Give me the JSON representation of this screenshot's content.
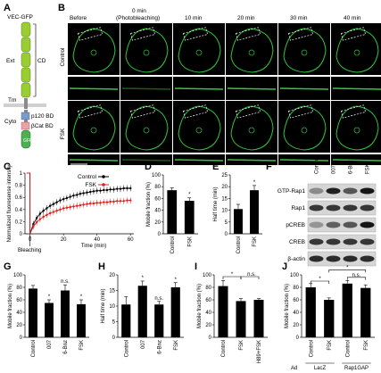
{
  "panels": {
    "A": {
      "letter": "A",
      "title": "VEC-GFP",
      "domains": {
        "ext": "Ext",
        "cd": "CD",
        "tm": "Tm",
        "cyto": "Cyto",
        "p120": "p120 BD",
        "bcat": "βCat BD",
        "gfp": "GFP"
      },
      "colors": {
        "ecto": "#9acd32",
        "p120": "#7a9cc9",
        "bcat": "#e8a3a8",
        "gfp": "#4caf50"
      }
    },
    "B": {
      "letter": "B",
      "top_times": [
        "Before",
        "10 min",
        "20 min",
        "30 min",
        "40 min"
      ],
      "bleach_time": "0 min",
      "bleach_note": "(Photobleaching)",
      "rows": [
        "Control",
        "FSK"
      ]
    },
    "C": {
      "letter": "C",
      "ylabel": "Normalized fluoresense intensity",
      "xlabel": "Time (min)",
      "xmark": "Bleaching",
      "legend": [
        "Control",
        "FSK"
      ],
      "colors": {
        "control": "#000000",
        "fsk": "#e0201b"
      },
      "chart_data": {
        "type": "line",
        "x": [
          0,
          2,
          4,
          6,
          8,
          10,
          12,
          14,
          16,
          18,
          20,
          22,
          24,
          26,
          28,
          30,
          32,
          34,
          36,
          38,
          40,
          42,
          44,
          46,
          48,
          50,
          52,
          54,
          56,
          58,
          60
        ],
        "series": [
          {
            "name": "Control",
            "values": [
              0.0,
              0.16,
              0.26,
              0.33,
              0.38,
              0.42,
              0.46,
              0.49,
              0.52,
              0.55,
              0.57,
              0.59,
              0.61,
              0.63,
              0.64,
              0.66,
              0.67,
              0.68,
              0.69,
              0.7,
              0.71,
              0.71,
              0.72,
              0.72,
              0.73,
              0.73,
              0.74,
              0.74,
              0.75,
              0.75,
              0.75
            ]
          },
          {
            "name": "FSK",
            "values": [
              0.0,
              0.12,
              0.19,
              0.24,
              0.28,
              0.31,
              0.34,
              0.36,
              0.38,
              0.4,
              0.42,
              0.43,
              0.44,
              0.45,
              0.46,
              0.47,
              0.48,
              0.49,
              0.5,
              0.5,
              0.51,
              0.51,
              0.52,
              0.52,
              0.53,
              0.53,
              0.54,
              0.54,
              0.54,
              0.55,
              0.55
            ]
          }
        ],
        "pre_bleach": 1.0,
        "xlim": [
          -3,
          62
        ],
        "ylim": [
          0,
          1
        ],
        "xticks": [
          "0",
          "20",
          "40",
          "60"
        ],
        "yticks": [
          "0",
          "0.2",
          "0.4",
          "0.6",
          "0.8",
          "1"
        ]
      }
    },
    "D": {
      "letter": "D",
      "ylabel": "Mobile fraction (%)",
      "chart_data": {
        "type": "bar",
        "categories": [
          "Control",
          "FSK"
        ],
        "values": [
          74,
          56
        ],
        "errors": [
          4,
          5
        ],
        "stars": [
          "",
          "*"
        ],
        "ylim": [
          0,
          100
        ],
        "yticks": [
          "0",
          "20",
          "40",
          "60",
          "80",
          "100"
        ]
      }
    },
    "E": {
      "letter": "E",
      "ylabel": "Half time (min)",
      "chart_data": {
        "type": "bar",
        "categories": [
          "Control",
          "FSK"
        ],
        "values": [
          10.5,
          18.5
        ],
        "errors": [
          2,
          2
        ],
        "stars": [
          "",
          "*"
        ],
        "ylim": [
          0,
          25
        ],
        "yticks": [
          "0",
          "5",
          "10",
          "15",
          "20",
          "25"
        ]
      }
    },
    "F": {
      "letter": "F",
      "lanes": [
        "Control",
        "007",
        "6-Bnz",
        "FSK"
      ],
      "rows": [
        "GTP-Rap1",
        "Rap1",
        "pCREB",
        "CREB",
        "β-actin"
      ]
    },
    "G": {
      "letter": "G",
      "ylabel": "Mobile fraction (%)",
      "chart_data": {
        "type": "bar",
        "categories": [
          "Control",
          "007",
          "6-Bnz",
          "FSK"
        ],
        "values": [
          78,
          55,
          75,
          53
        ],
        "errors": [
          5,
          5,
          9,
          7
        ],
        "stars": [
          "",
          "*",
          "n.s.",
          "*"
        ],
        "ylim": [
          0,
          100
        ],
        "yticks": [
          "0",
          "20",
          "40",
          "60",
          "80",
          "100"
        ]
      }
    },
    "H": {
      "letter": "H",
      "ylabel": "Half time (min)",
      "chart_data": {
        "type": "bar",
        "categories": [
          "Control",
          "007",
          "6-Bnz",
          "FSK"
        ],
        "values": [
          10.5,
          16.5,
          10.5,
          16
        ],
        "errors": [
          2.5,
          1.5,
          1,
          1.5
        ],
        "stars": [
          "",
          "*",
          "n.s.",
          "*"
        ],
        "ylim": [
          0,
          20
        ],
        "yticks": [
          "0",
          "5",
          "10",
          "15",
          "20"
        ]
      }
    },
    "I": {
      "letter": "I",
      "ylabel": "Mobile fraction (%)",
      "brackets": [
        "*",
        "n.s."
      ],
      "chart_data": {
        "type": "bar",
        "categories": [
          "Control",
          "FSK",
          "H89+FSK"
        ],
        "values": [
          82,
          58,
          60
        ],
        "errors": [
          9,
          4,
          2
        ],
        "ylim": [
          0,
          100
        ],
        "yticks": [
          "0",
          "20",
          "40",
          "60",
          "80",
          "100"
        ]
      }
    },
    "J": {
      "letter": "J",
      "ylabel": "Mobile fraction (%)",
      "brackets": [
        "*",
        "n.s.",
        "*"
      ],
      "groups": [
        "Ad",
        "LacZ",
        "Rap1GAP"
      ],
      "chart_data": {
        "type": "bar",
        "categories": [
          "Control",
          "FSK",
          "Control",
          "FSK"
        ],
        "values": [
          80,
          60,
          86,
          79
        ],
        "errors": [
          6,
          3,
          5,
          5
        ],
        "ylim": [
          0,
          100
        ],
        "yticks": [
          "0",
          "20",
          "40",
          "60",
          "80",
          "100"
        ]
      }
    }
  }
}
